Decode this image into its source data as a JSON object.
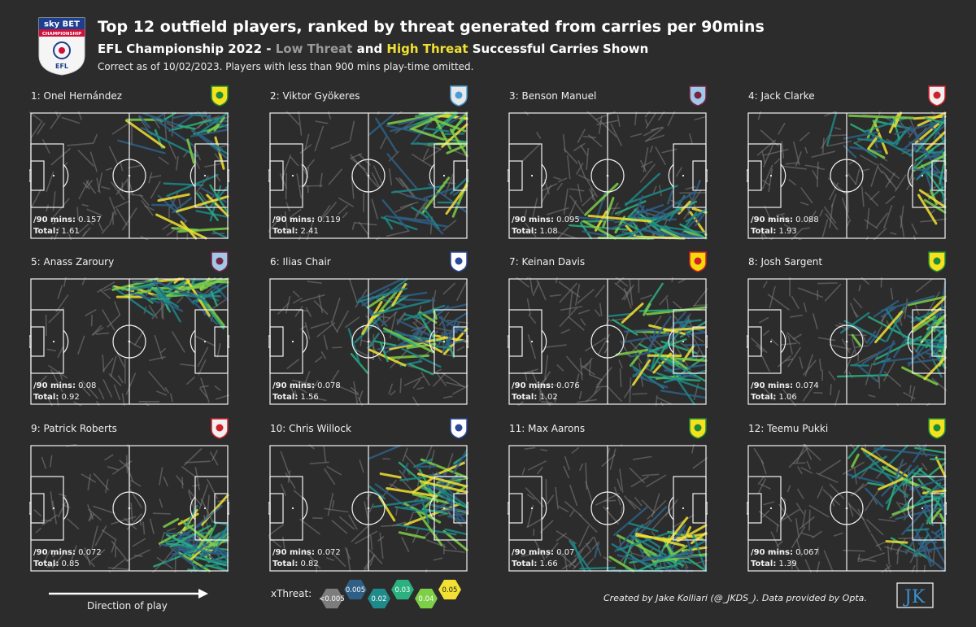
{
  "header": {
    "title": "Top 12 outfield players, ranked by threat generated from carries per 90mins",
    "subtitle_prefix": "EFL Championship 2022 - ",
    "subtitle_low": "Low Threat",
    "subtitle_mid": " and ",
    "subtitle_high": "High Threat",
    "subtitle_suffix": " Successful Carries Shown",
    "note": "Correct as of 10/02/2023. Players with less than 900 mins play-time omitted.",
    "logo_top": "sky BET",
    "logo_mid": "CHAMPIONSHIP",
    "logo_bottom": "EFL"
  },
  "labels": {
    "per90": "/90 mins:",
    "total": "Total:"
  },
  "colors": {
    "background": "#2b2c2b",
    "low_threat": "#9a9a9a",
    "high_threat": "#f2e033"
  },
  "chart_data": {
    "type": "pitch-carries",
    "players": [
      {
        "rank": 1,
        "label": "1: Onel Hernández",
        "club_icon": "norwich-crest-icon",
        "per90": "0.157",
        "total": "1.61"
      },
      {
        "rank": 2,
        "label": "2: Viktor Gyökeres",
        "club_icon": "coventry-crest-icon",
        "per90": "0.119",
        "total": "2.41"
      },
      {
        "rank": 3,
        "label": "3: Benson Manuel",
        "club_icon": "burnley-crest-icon",
        "per90": "0.095",
        "total": "1.08"
      },
      {
        "rank": 4,
        "label": "4: Jack Clarke",
        "club_icon": "sunderland-crest-icon",
        "per90": "0.088",
        "total": "1.93"
      },
      {
        "rank": 5,
        "label": "5: Anass Zaroury",
        "club_icon": "burnley-crest-icon",
        "per90": "0.08",
        "total": "0.92"
      },
      {
        "rank": 6,
        "label": "6: Ilias Chair",
        "club_icon": "qpr-crest-icon",
        "per90": "0.078",
        "total": "1.56"
      },
      {
        "rank": 7,
        "label": "7: Keinan Davis",
        "club_icon": "watford-crest-icon",
        "per90": "0.076",
        "total": "1.02"
      },
      {
        "rank": 8,
        "label": "8: Josh Sargent",
        "club_icon": "norwich-crest-icon",
        "per90": "0.074",
        "total": "1.06"
      },
      {
        "rank": 9,
        "label": "9: Patrick Roberts",
        "club_icon": "sunderland-crest-icon",
        "per90": "0.072",
        "total": "0.85"
      },
      {
        "rank": 10,
        "label": "10: Chris Willock",
        "club_icon": "qpr-crest-icon",
        "per90": "0.072",
        "total": "0.82"
      },
      {
        "rank": 11,
        "label": "11: Max Aarons",
        "club_icon": "norwich-crest-icon",
        "per90": "0.07",
        "total": "1.66"
      },
      {
        "rank": 12,
        "label": "12: Teemu Pukki",
        "club_icon": "norwich-crest-icon",
        "per90": "0.067",
        "total": "1.39"
      }
    ],
    "colorscale": {
      "label": "xThreat:",
      "bins": [
        {
          "label": "<0.005",
          "color": "#7d7d7d"
        },
        {
          "label": "0.005",
          "color": "#2f5f86"
        },
        {
          "label": "0.02",
          "color": "#1f8a8a"
        },
        {
          "label": "0.03",
          "color": "#2bb07f"
        },
        {
          "label": "0.04",
          "color": "#7dcf48"
        },
        {
          "label": "0.05",
          "color": "#f2e033"
        }
      ]
    }
  },
  "footer": {
    "direction_label": "Direction of play",
    "credit": "Created by Jake Kolliari (@_JKDS_). Data provided by Opta.",
    "brand": "JK"
  }
}
